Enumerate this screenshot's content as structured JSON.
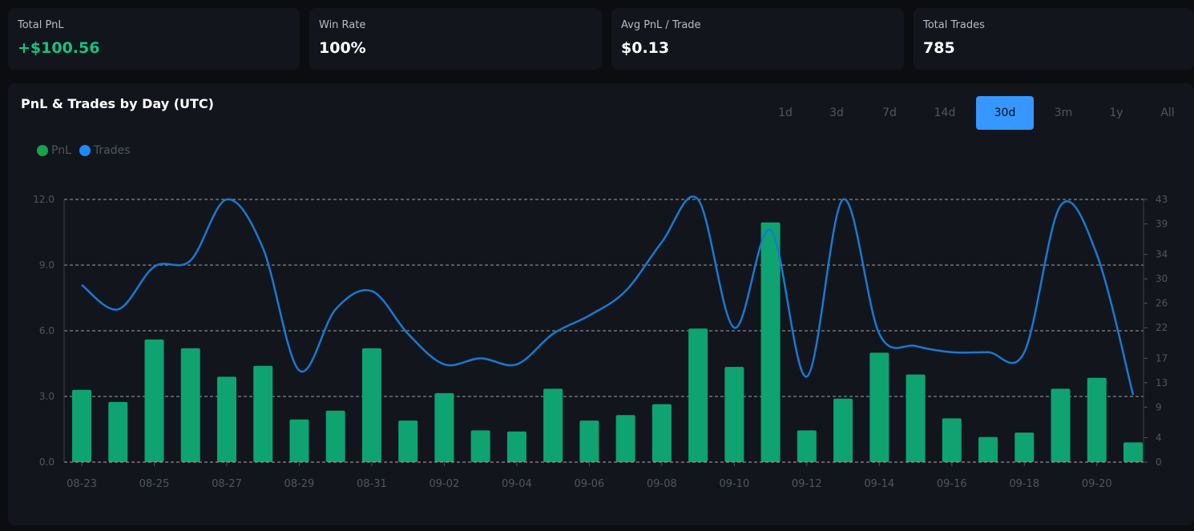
{
  "stats": [
    {
      "label": "Total PnL",
      "value": "+$100.56",
      "positive": true
    },
    {
      "label": "Win Rate",
      "value": "100%",
      "positive": false
    },
    {
      "label": "Avg PnL / Trade",
      "value": "$0.13",
      "positive": false
    },
    {
      "label": "Total Trades",
      "value": "785",
      "positive": false
    }
  ],
  "panel": {
    "title": "PnL & Trades by Day (UTC)",
    "ranges": [
      "1d",
      "3d",
      "7d",
      "14d",
      "30d",
      "3m",
      "1y",
      "All"
    ],
    "active_range": "30d"
  },
  "legend": [
    {
      "name": "PnL",
      "color": "#17a34a"
    },
    {
      "name": "Trades",
      "color": "#1a8cff"
    }
  ],
  "colors": {
    "bar": "#0ea371",
    "line": "#1a78d2",
    "accent": "#3597ff",
    "positive": "#17c27f"
  },
  "chart_data": {
    "type": "bar",
    "categories": [
      "08-23",
      "08-24",
      "08-25",
      "08-26",
      "08-27",
      "08-28",
      "08-29",
      "08-30",
      "08-31",
      "09-01",
      "09-02",
      "09-03",
      "09-04",
      "09-05",
      "09-06",
      "09-07",
      "09-08",
      "09-09",
      "09-10",
      "09-11",
      "09-12",
      "09-13",
      "09-14",
      "09-15",
      "09-16",
      "09-17",
      "09-18",
      "09-19",
      "09-20",
      "09-21"
    ],
    "xtick_labels": [
      "08-23",
      "08-25",
      "08-27",
      "08-29",
      "08-31",
      "09-02",
      "09-04",
      "09-06",
      "09-08",
      "09-10",
      "09-12",
      "09-14",
      "09-16",
      "09-18",
      "09-20"
    ],
    "series": [
      {
        "name": "PnL",
        "axis": "left",
        "type": "bar",
        "values": [
          3.3,
          2.75,
          5.6,
          5.2,
          3.9,
          4.4,
          1.95,
          2.35,
          5.2,
          1.9,
          3.15,
          1.45,
          1.4,
          3.35,
          1.9,
          2.15,
          2.65,
          6.1,
          4.35,
          10.95,
          1.45,
          2.9,
          5.0,
          4.0,
          2.0,
          1.15,
          1.35,
          3.35,
          3.85,
          0.9
        ]
      },
      {
        "name": "Trades",
        "axis": "right",
        "type": "line",
        "values": [
          29,
          25,
          32,
          33,
          43,
          35,
          15,
          25,
          28,
          21,
          16,
          17,
          16,
          21,
          24,
          28,
          36,
          43,
          22,
          38,
          14,
          43,
          21,
          19,
          18,
          18,
          18,
          42,
          34,
          11
        ]
      }
    ],
    "yleft_ticks": [
      "0.0",
      "3.0",
      "6.0",
      "9.0",
      "12.0"
    ],
    "yleft_lim": [
      0,
      12
    ],
    "yright_ticks": [
      "0",
      "4",
      "9",
      "13",
      "17",
      "22",
      "26",
      "30",
      "34",
      "39",
      "43"
    ],
    "yright_lim": [
      0,
      43
    ],
    "grid": true
  }
}
